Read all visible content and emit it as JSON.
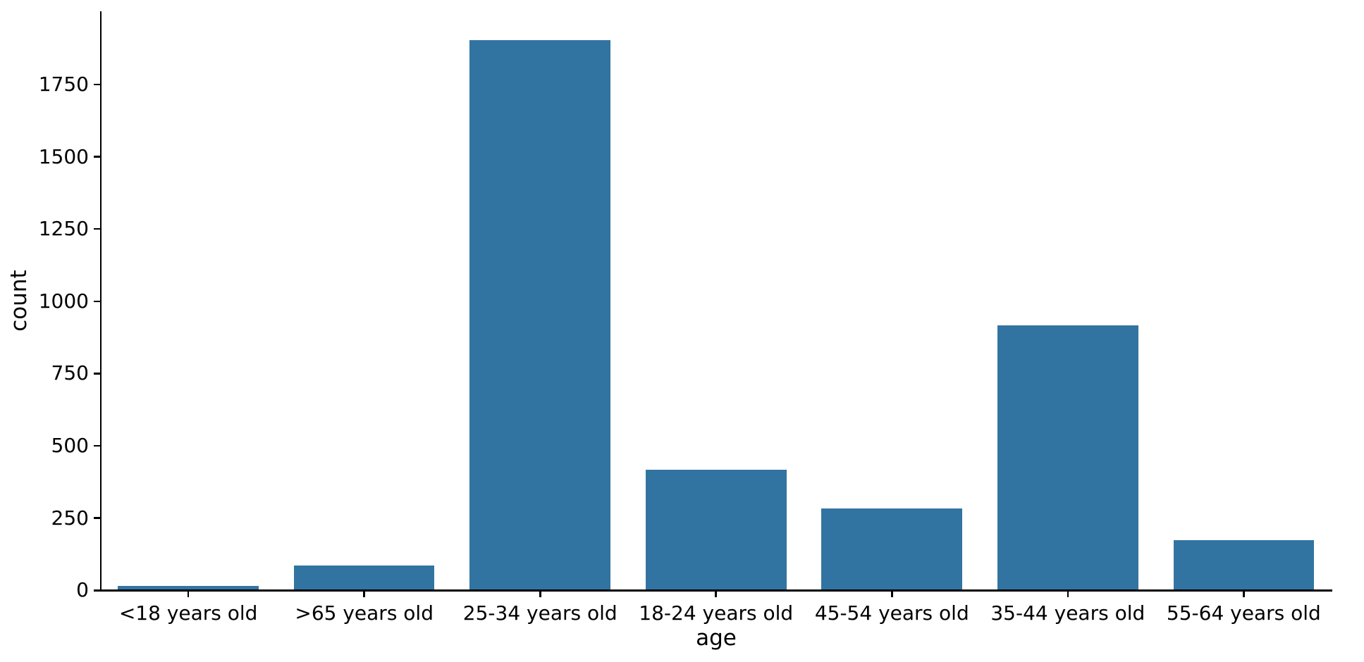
{
  "chart_data": {
    "type": "bar",
    "title": "",
    "xlabel": "age",
    "ylabel": "count",
    "categories": [
      "<18 years old",
      ">65 years old",
      "25-34 years old",
      "18-24 years old",
      "45-54 years old",
      "35-44 years old",
      "55-64 years old"
    ],
    "values": [
      12,
      83,
      1900,
      413,
      280,
      913,
      170
    ],
    "yticks": [
      0,
      250,
      500,
      750,
      1000,
      1250,
      1500,
      1750
    ],
    "ylim": [
      0,
      2000
    ],
    "grid": false,
    "legend": "none",
    "bar_color": "#3274a1",
    "axis_color": "#000000",
    "text_color": "#000000",
    "background_color": "#ffffff"
  }
}
